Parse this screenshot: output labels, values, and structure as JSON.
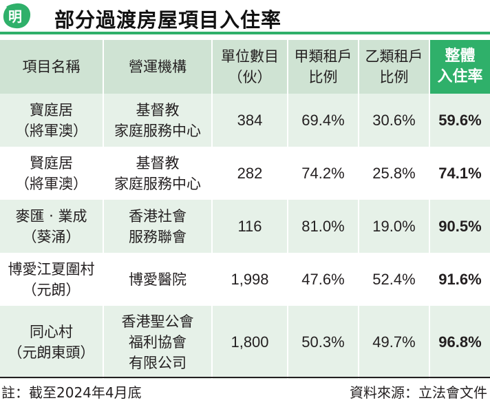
{
  "header": {
    "logo_char": "明",
    "title": "部分過渡房屋項目入住率",
    "accent_color": "#2fb06a"
  },
  "table": {
    "columns": [
      {
        "line1": "項目名稱"
      },
      {
        "line1": "營運機構"
      },
      {
        "line1": "單位數目",
        "line2": "（伙）"
      },
      {
        "line1": "甲類租戶",
        "line2": "比例"
      },
      {
        "line1": "乙類租戶",
        "line2": "比例"
      },
      {
        "line1": "整體",
        "line2": "入住率"
      }
    ],
    "rows": [
      {
        "name": [
          "寶庭居",
          "（將軍澳）"
        ],
        "operator": [
          "基督教",
          "家庭服務中心"
        ],
        "units": "384",
        "type_a": "69.4%",
        "type_b": "30.6%",
        "rate": "59.6%"
      },
      {
        "name": [
          "賢庭居",
          "（將軍澳）"
        ],
        "operator": [
          "基督教",
          "家庭服務中心"
        ],
        "units": "282",
        "type_a": "74.2%",
        "type_b": "25.8%",
        "rate": "74.1%"
      },
      {
        "name": [
          "麥匯 ‧ 業成",
          "（葵涌）"
        ],
        "operator": [
          "香港社會",
          "服務聯會"
        ],
        "units": "116",
        "type_a": "81.0%",
        "type_b": "19.0%",
        "rate": "90.5%"
      },
      {
        "name": [
          "博愛江夏圍村",
          "（元朗）"
        ],
        "operator": [
          "博愛醫院"
        ],
        "units": "1,998",
        "type_a": "47.6%",
        "type_b": "52.4%",
        "rate": "91.6%"
      },
      {
        "name": [
          "同心村",
          "（元朗東頭）"
        ],
        "operator": [
          "香港聖公會",
          "福利協會",
          "有限公司"
        ],
        "units": "1,800",
        "type_a": "50.3%",
        "type_b": "49.7%",
        "rate": "96.8%"
      }
    ]
  },
  "footer": {
    "note": "註：截至2024年4月底",
    "source": "資料來源：立法會文件"
  }
}
